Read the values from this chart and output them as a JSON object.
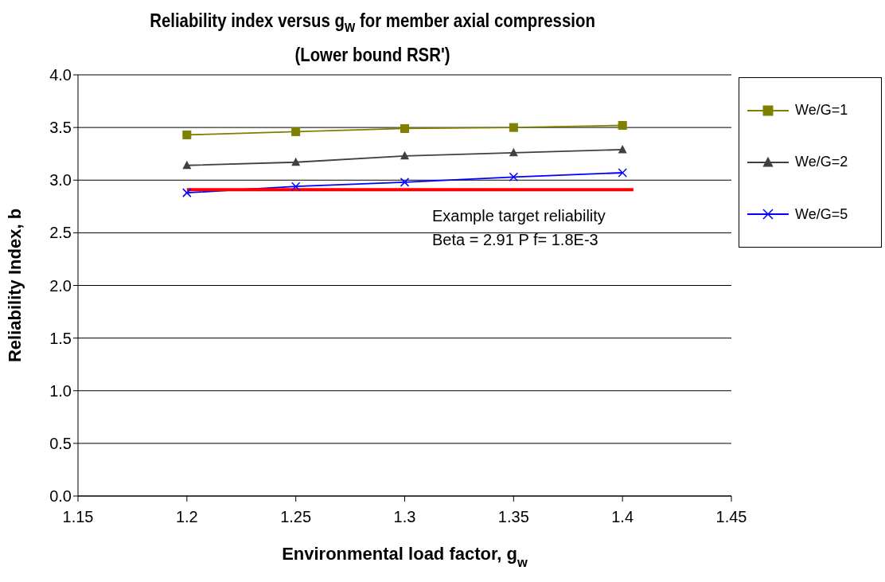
{
  "chart_data": {
    "type": "line",
    "title": "Reliability index versus g$_{w}$ for member axial compression",
    "subtitle": "(Lower bound RSR')",
    "xlabel": "Environmental load factor, g$_{w}$",
    "ylabel": "Reliability Index, b",
    "x": [
      1.2,
      1.25,
      1.3,
      1.35,
      1.4
    ],
    "series": [
      {
        "name": "We/G=1",
        "color": "#808000",
        "marker": "square",
        "values": [
          3.43,
          3.46,
          3.49,
          3.5,
          3.52
        ]
      },
      {
        "name": "We/G=2",
        "color": "#404040",
        "marker": "triangle",
        "values": [
          3.14,
          3.17,
          3.23,
          3.26,
          3.29
        ]
      },
      {
        "name": "We/G=5",
        "color": "#0000ff",
        "marker": "cross",
        "values": [
          2.88,
          2.94,
          2.98,
          3.03,
          3.07
        ]
      },
      {
        "color": "#ff0000",
        "marker": "none",
        "x": [
          1.2,
          1.405
        ],
        "values": [
          2.91,
          2.91
        ]
      }
    ],
    "annotations": [
      "Example target reliability",
      "Beta = 2.91  P f= 1.8E-3"
    ],
    "xlim": [
      1.15,
      1.45
    ],
    "xticks": [
      1.15,
      1.2,
      1.25,
      1.3,
      1.35,
      1.4,
      1.45
    ],
    "ylim": [
      0,
      4
    ],
    "yticks": [
      {
        "value": 0,
        "label": "0.0"
      },
      {
        "value": 0.5,
        "label": "0.5"
      },
      {
        "value": 1,
        "label": "1.0"
      },
      {
        "value": 1.5,
        "label": "1.5"
      },
      {
        "value": 2,
        "label": "2.0"
      },
      {
        "value": 2.5,
        "label": "2.5"
      },
      {
        "value": 3,
        "label": "3.0"
      },
      {
        "value": 3.5,
        "label": "3.5"
      },
      {
        "value": 4,
        "label": "4.0"
      }
    ],
    "grid": "y",
    "legend": "right"
  }
}
